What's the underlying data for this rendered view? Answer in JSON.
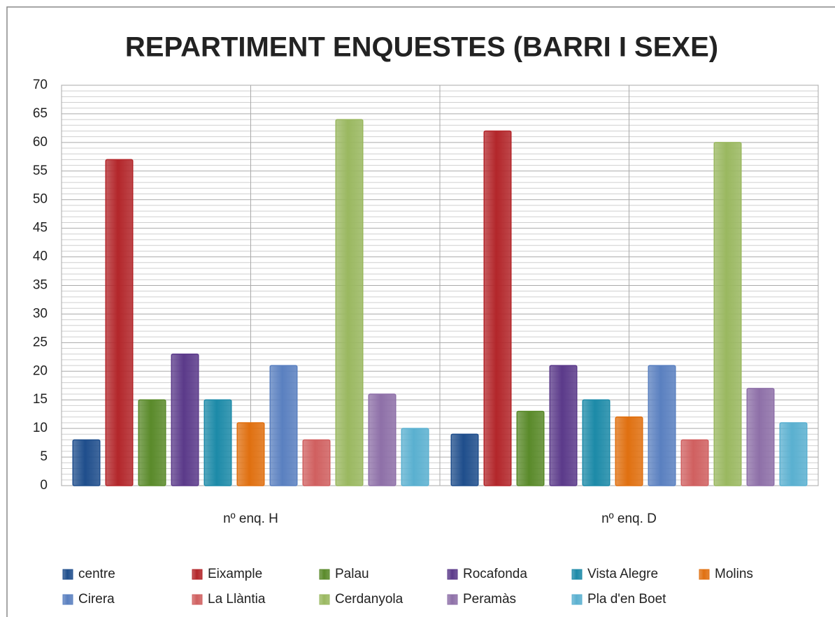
{
  "chart_data": {
    "type": "bar",
    "title": "REPARTIMENT ENQUESTES (BARRI I SEXE)",
    "categories": [
      "nº enq. H",
      "nº enq. D"
    ],
    "series": [
      {
        "name": "centre",
        "color": "#1f4e8c",
        "values": [
          8,
          9
        ]
      },
      {
        "name": "Eixample",
        "color": "#b3262a",
        "values": [
          57,
          62
        ]
      },
      {
        "name": "Palau",
        "color": "#5a8a2a",
        "values": [
          15,
          13
        ]
      },
      {
        "name": "Rocafonda",
        "color": "#5b3a8a",
        "values": [
          23,
          21
        ]
      },
      {
        "name": "Vista Alegre",
        "color": "#1c8aa8",
        "values": [
          15,
          15
        ]
      },
      {
        "name": "Molins",
        "color": "#e07010",
        "values": [
          11,
          12
        ]
      },
      {
        "name": "Cirera",
        "color": "#5a80c0",
        "values": [
          21,
          21
        ]
      },
      {
        "name": "La Llàntia",
        "color": "#d06060",
        "values": [
          8,
          8
        ]
      },
      {
        "name": "Cerdanyola",
        "color": "#9ab860",
        "values": [
          64,
          60
        ]
      },
      {
        "name": "Peramàs",
        "color": "#8e70a8",
        "values": [
          16,
          17
        ]
      },
      {
        "name": "Pla d'en Boet",
        "color": "#5ab0d0",
        "values": [
          10,
          11
        ]
      }
    ],
    "ylim": [
      0,
      70
    ],
    "yticks": [
      0,
      5,
      10,
      15,
      20,
      25,
      30,
      35,
      40,
      45,
      50,
      55,
      60,
      65,
      70
    ],
    "grid": true,
    "legend": "bottom"
  }
}
